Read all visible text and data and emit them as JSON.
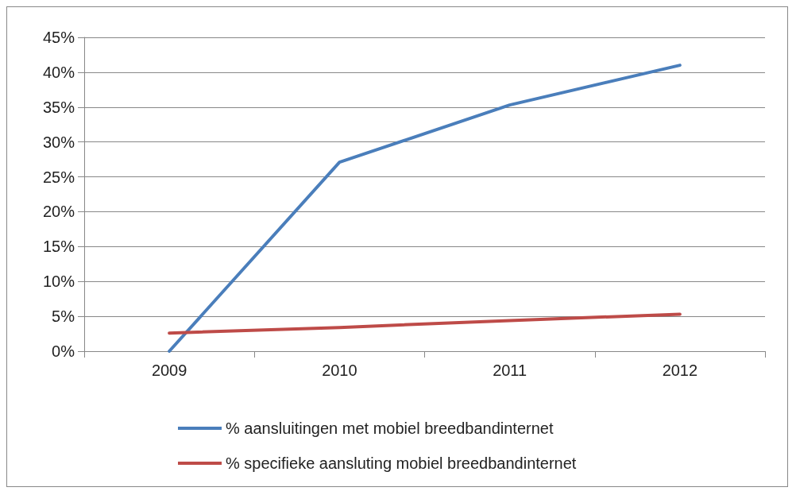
{
  "chart_data": {
    "type": "line",
    "categories": [
      "2009",
      "2010",
      "2011",
      "2012"
    ],
    "series": [
      {
        "name": "% aansluitingen met mobiel breedbandinternet",
        "color": "#4a7ebb",
        "values": [
          0,
          27.1,
          35.3,
          41
        ]
      },
      {
        "name": "% specifieke aansluting mobiel breedbandinternet",
        "color": "#be4b48",
        "values": [
          2.6,
          3.4,
          4.4,
          5.3
        ]
      }
    ],
    "ylim": [
      0,
      45
    ],
    "yticks": [
      {
        "value": 0,
        "label": "0%"
      },
      {
        "value": 5,
        "label": "5%"
      },
      {
        "value": 10,
        "label": "10%"
      },
      {
        "value": 15,
        "label": "15%"
      },
      {
        "value": 20,
        "label": "20%"
      },
      {
        "value": 25,
        "label": "25%"
      },
      {
        "value": 30,
        "label": "30%"
      },
      {
        "value": 35,
        "label": "35%"
      },
      {
        "value": 40,
        "label": "40%"
      },
      {
        "value": 45,
        "label": "45%"
      }
    ],
    "grid": "y",
    "legend": "bottom",
    "marker": "none",
    "line_style": "solid"
  }
}
